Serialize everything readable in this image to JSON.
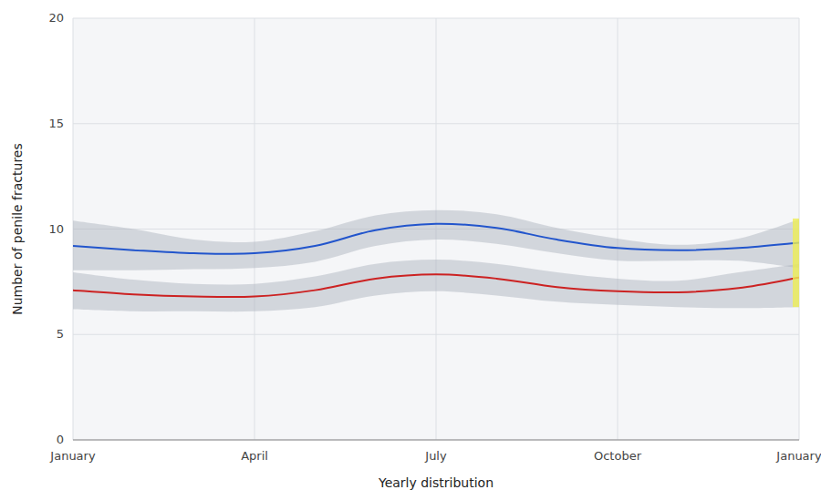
{
  "chart_data": {
    "type": "line",
    "xlabel": "Yearly distribution",
    "ylabel": "Number of penile fractures",
    "x": [
      0,
      1,
      2,
      3,
      4,
      5,
      6,
      7,
      8,
      9,
      10,
      11,
      12
    ],
    "xlim": [
      0,
      12
    ],
    "ylim": [
      0,
      20
    ],
    "xticks": [
      {
        "value": 0,
        "label": "January"
      },
      {
        "value": 3,
        "label": "April"
      },
      {
        "value": 6,
        "label": "July"
      },
      {
        "value": 9,
        "label": "October"
      },
      {
        "value": 12,
        "label": "January"
      }
    ],
    "yticks": [
      0,
      5,
      10,
      15,
      20
    ],
    "grid": true,
    "series": [
      {
        "color": "#2255cc",
        "values": [
          9.2,
          9.0,
          8.85,
          8.85,
          9.2,
          9.95,
          10.25,
          10.05,
          9.5,
          9.1,
          9.0,
          9.1,
          9.35
        ],
        "upper": [
          10.4,
          10.0,
          9.5,
          9.4,
          9.9,
          10.65,
          10.9,
          10.7,
          10.05,
          9.55,
          9.25,
          9.55,
          10.45
        ],
        "lower": [
          8.05,
          8.05,
          8.1,
          8.15,
          8.45,
          9.2,
          9.5,
          9.3,
          8.85,
          8.5,
          8.5,
          8.5,
          8.15
        ]
      },
      {
        "color": "#cc2222",
        "values": [
          7.1,
          6.9,
          6.8,
          6.8,
          7.1,
          7.65,
          7.85,
          7.65,
          7.25,
          7.05,
          7.0,
          7.2,
          7.7
        ],
        "upper": [
          7.95,
          7.6,
          7.4,
          7.4,
          7.75,
          8.35,
          8.55,
          8.35,
          7.95,
          7.65,
          7.55,
          7.95,
          8.35
        ],
        "lower": [
          6.2,
          6.1,
          6.1,
          6.1,
          6.3,
          6.85,
          7.05,
          6.85,
          6.55,
          6.4,
          6.3,
          6.25,
          6.3
        ]
      }
    ],
    "highlight": {
      "x": 12.0,
      "ymin": 6.3,
      "ymax": 10.5,
      "color": "#eeee55"
    }
  }
}
